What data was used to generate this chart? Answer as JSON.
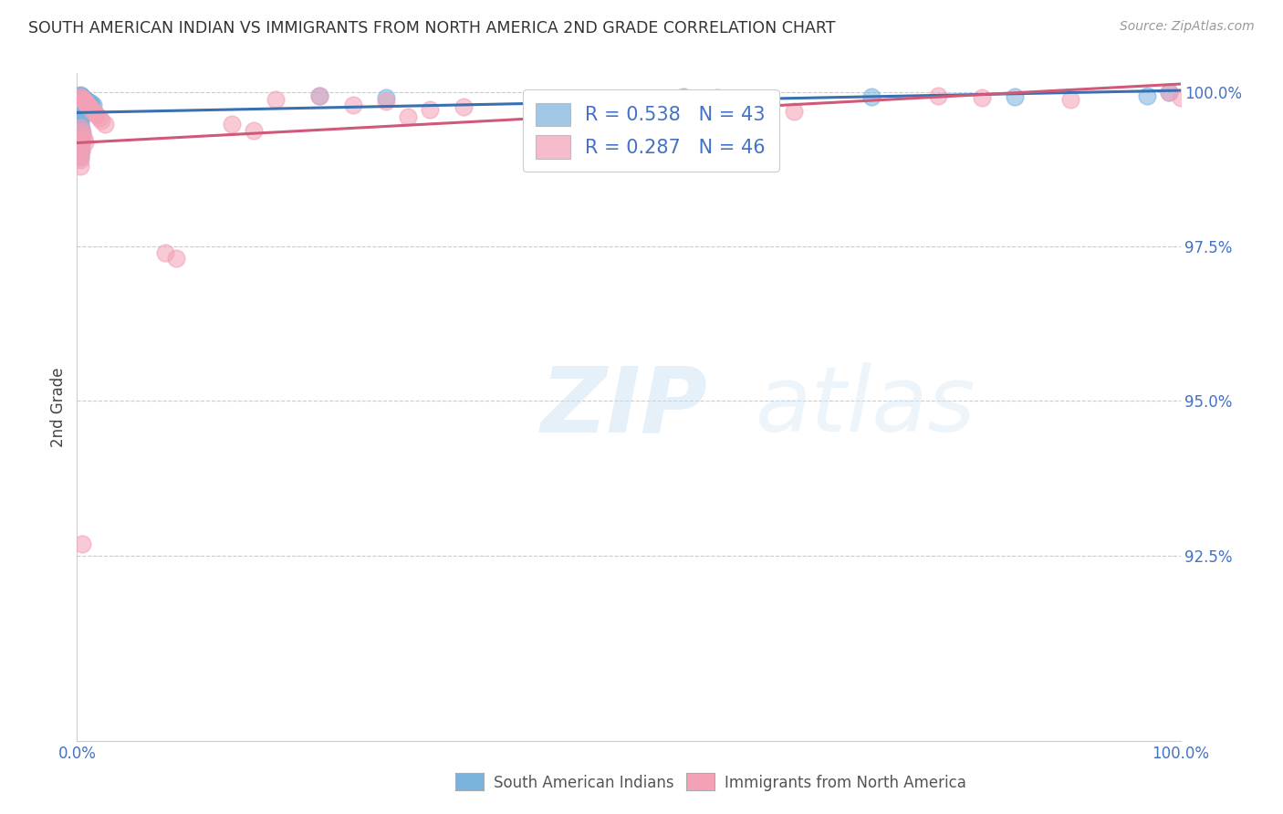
{
  "title": "SOUTH AMERICAN INDIAN VS IMMIGRANTS FROM NORTH AMERICA 2ND GRADE CORRELATION CHART",
  "source": "Source: ZipAtlas.com",
  "ylabel": "2nd Grade",
  "xlim": [
    0.0,
    1.0
  ],
  "ylim": [
    0.895,
    1.003
  ],
  "yticks": [
    0.925,
    0.95,
    0.975,
    1.0
  ],
  "ytick_labels": [
    "92.5%",
    "95.0%",
    "97.5%",
    "100.0%"
  ],
  "blue_R": 0.538,
  "blue_N": 43,
  "pink_R": 0.287,
  "pink_N": 46,
  "blue_color": "#7ab3de",
  "pink_color": "#f4a0b5",
  "blue_line_color": "#3a70b0",
  "pink_line_color": "#d05878",
  "legend_label_blue": "South American Indians",
  "legend_label_pink": "Immigrants from North America",
  "blue_x": [
    0.002,
    0.003,
    0.003,
    0.004,
    0.004,
    0.005,
    0.005,
    0.006,
    0.006,
    0.007,
    0.007,
    0.008,
    0.009,
    0.01,
    0.011,
    0.012,
    0.013,
    0.015,
    0.003,
    0.003,
    0.004,
    0.003,
    0.004,
    0.003,
    0.003,
    0.003,
    0.003,
    0.004,
    0.005,
    0.003,
    0.003,
    0.003,
    0.004,
    0.004,
    0.003,
    0.22,
    0.55,
    0.72,
    0.97,
    0.99,
    0.28,
    0.58,
    0.85
  ],
  "blue_y": [
    0.9993,
    0.9995,
    0.9992,
    0.9993,
    0.9992,
    0.9991,
    0.999,
    0.9989,
    0.9988,
    0.9987,
    0.9987,
    0.9986,
    0.9985,
    0.9984,
    0.9983,
    0.9982,
    0.998,
    0.9978,
    0.9975,
    0.9972,
    0.997,
    0.9968,
    0.9965,
    0.996,
    0.9955,
    0.995,
    0.9945,
    0.994,
    0.9935,
    0.993,
    0.9925,
    0.992,
    0.9915,
    0.9905,
    0.9895,
    0.9993,
    0.9992,
    0.9992,
    0.9993,
    1.0,
    0.9991,
    0.999,
    0.9992
  ],
  "pink_x": [
    0.003,
    0.004,
    0.005,
    0.006,
    0.007,
    0.008,
    0.009,
    0.01,
    0.012,
    0.014,
    0.016,
    0.018,
    0.02,
    0.022,
    0.025,
    0.003,
    0.004,
    0.005,
    0.006,
    0.007,
    0.003,
    0.004,
    0.003,
    0.003,
    0.003,
    0.08,
    0.09,
    0.16,
    0.18,
    0.22,
    0.25,
    0.3,
    0.35,
    0.48,
    0.28,
    0.14,
    0.55,
    0.62,
    0.65,
    0.78,
    0.82,
    0.9,
    0.99,
    1.0,
    0.005,
    0.32
  ],
  "pink_y": [
    0.9992,
    0.999,
    0.9988,
    0.9986,
    0.9984,
    0.9982,
    0.998,
    0.9978,
    0.9974,
    0.997,
    0.9966,
    0.9962,
    0.9958,
    0.9954,
    0.9948,
    0.9942,
    0.9936,
    0.993,
    0.9924,
    0.9918,
    0.9912,
    0.9905,
    0.9898,
    0.989,
    0.988,
    0.974,
    0.973,
    0.9938,
    0.9988,
    0.9993,
    0.9978,
    0.996,
    0.9976,
    0.9966,
    0.9985,
    0.9948,
    0.999,
    0.9988,
    0.9968,
    0.9993,
    0.999,
    0.9988,
    1.0,
    0.999,
    0.9268,
    0.9972
  ]
}
